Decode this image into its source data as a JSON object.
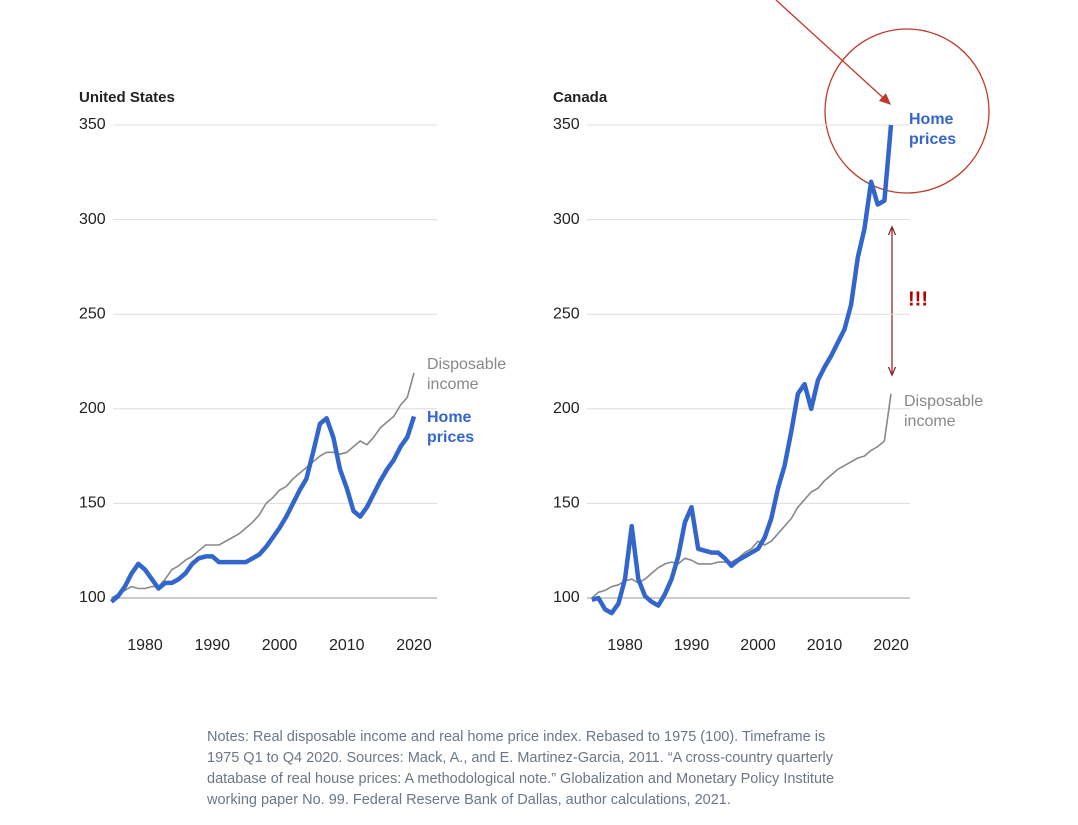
{
  "chart_data": [
    {
      "type": "line",
      "title": "United States",
      "x": [
        1975,
        1976,
        1977,
        1978,
        1979,
        1980,
        1981,
        1982,
        1983,
        1984,
        1985,
        1986,
        1987,
        1988,
        1989,
        1990,
        1991,
        1992,
        1993,
        1994,
        1995,
        1996,
        1997,
        1998,
        1999,
        2000,
        2001,
        2002,
        2003,
        2004,
        2005,
        2006,
        2007,
        2008,
        2009,
        2010,
        2011,
        2012,
        2013,
        2014,
        2015,
        2016,
        2017,
        2018,
        2019,
        2020
      ],
      "series": [
        {
          "name": "Disposable income",
          "color": "#888888",
          "values": [
            100,
            102,
            104,
            106,
            105,
            105,
            106,
            106,
            110,
            115,
            117,
            120,
            122,
            125,
            128,
            128,
            128,
            130,
            132,
            134,
            137,
            140,
            144,
            150,
            153,
            157,
            159,
            163,
            166,
            169,
            172,
            175,
            177,
            177,
            176,
            177,
            180,
            183,
            181,
            185,
            190,
            193,
            196,
            202,
            206,
            219
          ]
        },
        {
          "name": "Home prices",
          "color": "#3366cc",
          "values": [
            98,
            101,
            106,
            113,
            118,
            115,
            110,
            105,
            108,
            108,
            110,
            113,
            118,
            121,
            122,
            122,
            119,
            119,
            119,
            119,
            119,
            121,
            123,
            127,
            132,
            137,
            143,
            150,
            157,
            163,
            177,
            192,
            195,
            185,
            168,
            158,
            146,
            143,
            148,
            155,
            162,
            168,
            173,
            180,
            185,
            196
          ]
        }
      ],
      "xlim": [
        1975,
        2023
      ],
      "xticks": [
        1980,
        1990,
        2000,
        2010,
        2020
      ],
      "ylim": [
        90,
        350
      ],
      "yticks": [
        100,
        150,
        200,
        250,
        300,
        350
      ],
      "grid": true
    },
    {
      "type": "line",
      "title": "Canada",
      "x": [
        1975,
        1976,
        1977,
        1978,
        1979,
        1980,
        1981,
        1982,
        1983,
        1984,
        1985,
        1986,
        1987,
        1988,
        1989,
        1990,
        1991,
        1992,
        1993,
        1994,
        1995,
        1996,
        1997,
        1998,
        1999,
        2000,
        2001,
        2002,
        2003,
        2004,
        2005,
        2006,
        2007,
        2008,
        2009,
        2010,
        2011,
        2012,
        2013,
        2014,
        2015,
        2016,
        2017,
        2018,
        2019,
        2020
      ],
      "series": [
        {
          "name": "Disposable income",
          "color": "#888888",
          "values": [
            100,
            103,
            104,
            106,
            107,
            109,
            110,
            108,
            110,
            113,
            116,
            118,
            119,
            118,
            121,
            120,
            118,
            118,
            118,
            119,
            119,
            119,
            121,
            124,
            126,
            130,
            128,
            130,
            134,
            138,
            142,
            148,
            152,
            156,
            158,
            162,
            165,
            168,
            170,
            172,
            174,
            175,
            178,
            180,
            183,
            208
          ]
        },
        {
          "name": "Home prices",
          "color": "#3366cc",
          "values": [
            99,
            100,
            94,
            92,
            97,
            110,
            138,
            110,
            101,
            98,
            96,
            102,
            110,
            122,
            140,
            148,
            126,
            125,
            124,
            124,
            121,
            117,
            120,
            122,
            124,
            126,
            132,
            142,
            158,
            170,
            188,
            208,
            213,
            200,
            215,
            222,
            228,
            235,
            242,
            255,
            280,
            295,
            320,
            308,
            310,
            350
          ]
        }
      ],
      "xlim": [
        1975,
        2023
      ],
      "xticks": [
        1980,
        1990,
        2000,
        2010,
        2020
      ],
      "ylim": [
        90,
        350
      ],
      "yticks": [
        100,
        150,
        200,
        250,
        300,
        350
      ],
      "grid": true,
      "annotation": "!!!"
    }
  ],
  "notes": "Notes: Real disposable income and real home price index. Rebased to 1975 (100). Timeframe is 1975 Q1 to Q4 2020. Sources: Mack, A., and E. Martinez-Garcia, 2011. “A cross-country quarterly database of real house prices: A methodological note.” Globalization and Monetary Policy Institute working paper No. 99. Federal Reserve Bank of Dallas, author calculations, 2021."
}
